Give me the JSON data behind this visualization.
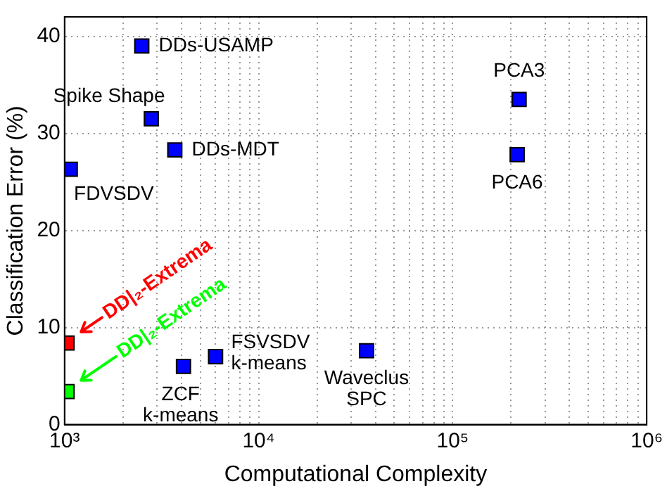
{
  "chart_data": {
    "type": "scatter",
    "xlabel": "Computational Complexity",
    "ylabel": "Classification Error (%)",
    "log": "x",
    "grid": true,
    "legend": false,
    "marker": "square",
    "xlim": [
      1000,
      1000000
    ],
    "ylim": [
      0,
      42
    ],
    "xticks": [
      {
        "value": 1000,
        "label": "10³"
      },
      {
        "value": 2000,
        "label": null
      },
      {
        "value": 3000,
        "label": null
      },
      {
        "value": 4000,
        "label": null
      },
      {
        "value": 5000,
        "label": null
      },
      {
        "value": 6000,
        "label": null
      },
      {
        "value": 7000,
        "label": null
      },
      {
        "value": 8000,
        "label": null
      },
      {
        "value": 9000,
        "label": null
      },
      {
        "value": 10000,
        "label": "10⁴"
      },
      {
        "value": 20000,
        "label": null
      },
      {
        "value": 30000,
        "label": null
      },
      {
        "value": 40000,
        "label": null
      },
      {
        "value": 50000,
        "label": null
      },
      {
        "value": 60000,
        "label": null
      },
      {
        "value": 70000,
        "label": null
      },
      {
        "value": 80000,
        "label": null
      },
      {
        "value": 90000,
        "label": null
      },
      {
        "value": 100000,
        "label": "10⁵"
      },
      {
        "value": 200000,
        "label": null
      },
      {
        "value": 300000,
        "label": null
      },
      {
        "value": 400000,
        "label": null
      },
      {
        "value": 500000,
        "label": null
      },
      {
        "value": 600000,
        "label": null
      },
      {
        "value": 700000,
        "label": null
      },
      {
        "value": 800000,
        "label": null
      },
      {
        "value": 900000,
        "label": null
      },
      {
        "value": 1000000,
        "label": "10⁶"
      }
    ],
    "yticks": [
      0,
      10,
      20,
      30,
      40
    ],
    "series": [
      {
        "name": "DDs-USAMP",
        "color": "#0000ff",
        "x": [
          2500
        ],
        "values": [
          39
        ]
      },
      {
        "name": "Spike Shape",
        "color": "#0000ff",
        "x": [
          2800
        ],
        "values": [
          31.5
        ]
      },
      {
        "name": "DDs-MDT",
        "color": "#0000ff",
        "x": [
          3700
        ],
        "values": [
          28.3
        ]
      },
      {
        "name": "FDVSDV",
        "color": "#0000ff",
        "x": [
          1070
        ],
        "values": [
          26.3
        ]
      },
      {
        "name": "PCA3",
        "color": "#0000ff",
        "x": [
          220000
        ],
        "values": [
          33.5
        ]
      },
      {
        "name": "PCA6",
        "color": "#0000ff",
        "x": [
          215000
        ],
        "values": [
          27.8
        ]
      },
      {
        "name": "DD|₂-Extrema",
        "color": "#ff0000",
        "x": [
          1030
        ],
        "values": [
          8.4
        ]
      },
      {
        "name": "DD|₂-Extrema",
        "color": "#00ff00",
        "x": [
          1030
        ],
        "values": [
          3.4
        ]
      },
      {
        "name": "ZCF k-means",
        "color": "#0000ff",
        "x": [
          4100
        ],
        "values": [
          6
        ]
      },
      {
        "name": "FSVSDV k-means",
        "color": "#0000ff",
        "x": [
          6000
        ],
        "values": [
          7
        ]
      },
      {
        "name": "Waveclus SPC",
        "color": "#0000ff",
        "x": [
          36000
        ],
        "values": [
          7.6
        ]
      }
    ]
  }
}
